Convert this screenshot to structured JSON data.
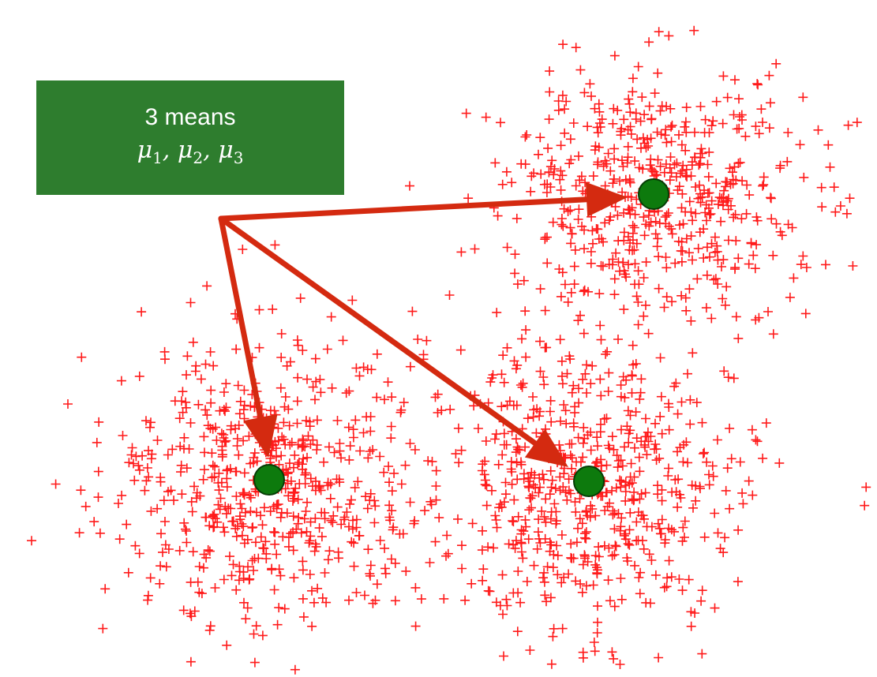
{
  "label": {
    "title": "3 means",
    "means": [
      {
        "symbol": "μ",
        "index": "1"
      },
      {
        "symbol": "μ",
        "index": "2"
      },
      {
        "symbol": "μ",
        "index": "3"
      }
    ],
    "separator": ", "
  },
  "colors": {
    "points": "#ff1a1a",
    "arrows": "#d42a10",
    "centroid_fill": "#0d7a0d",
    "centroid_stroke": "#063d06",
    "box": "#2e7d2e",
    "box_text": "#ffffff"
  },
  "icons": {
    "data_point": "plus-marker",
    "centroid": "filled-circle",
    "arrow": "arrow-pointer"
  }
}
